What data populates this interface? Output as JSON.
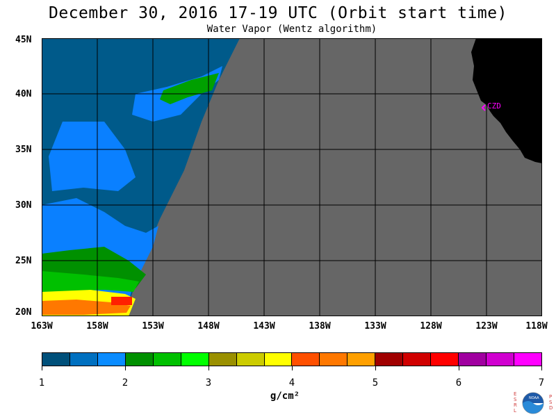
{
  "title": "December 30, 2016  17-19 UTC  (Orbit start time)",
  "subtitle": "Water Vapor (Wentz algorithm)",
  "map": {
    "lat_labels": [
      "45N",
      "40N",
      "35N",
      "30N",
      "25N",
      "20N"
    ],
    "lon_labels": [
      "163W",
      "158W",
      "153W",
      "148W",
      "143W",
      "138W",
      "133W",
      "128W",
      "123W",
      "118W"
    ],
    "station_label": "CZD",
    "colors": {
      "no_data": "#666666",
      "land": "#000000",
      "grid": "#000000",
      "station": "#ff00ff",
      "wv_low": "#005a8a",
      "wv_mid": "#0a80ff",
      "wv_green": "#0fa000"
    }
  },
  "colorbar": {
    "colors": [
      "#00507a",
      "#0070c0",
      "#0a8cff",
      "#009000",
      "#00c000",
      "#00ff00",
      "#9a9000",
      "#cccc00",
      "#ffff00",
      "#ff5000",
      "#ff7800",
      "#ffa000",
      "#a00000",
      "#d00000",
      "#ff0000",
      "#a000a0",
      "#d000d0",
      "#ff00ff"
    ],
    "ticks": [
      "1",
      "2",
      "3",
      "4",
      "5",
      "6",
      "7"
    ],
    "units": "g/cm²"
  },
  "logo": {
    "left_letters": "ESRL",
    "right_letters": "PSD",
    "badge_text": "NOAA"
  }
}
